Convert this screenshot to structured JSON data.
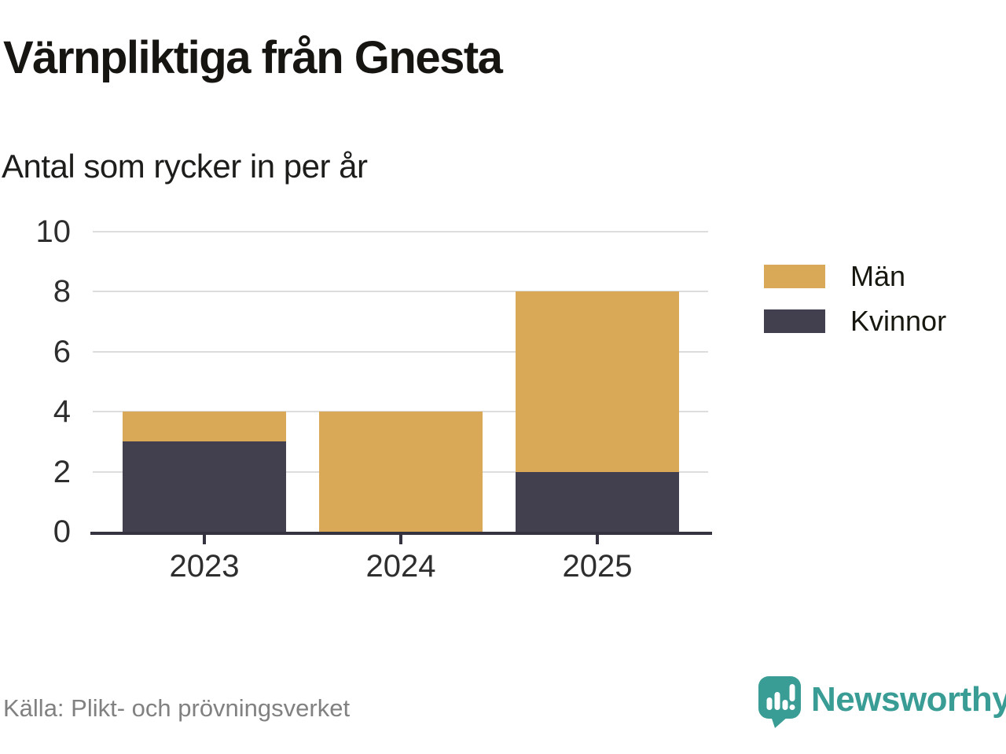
{
  "header": {
    "title": "Värnpliktiga från Gnesta",
    "subtitle": "Antal som rycker in per år"
  },
  "chart_data": {
    "type": "bar",
    "stacked": true,
    "title": "Värnpliktiga från Gnesta",
    "subtitle": "Antal som rycker in per år",
    "categories": [
      "2023",
      "2024",
      "2025"
    ],
    "series": [
      {
        "name": "Män",
        "color": "#D9A957",
        "values": [
          1,
          4,
          6
        ]
      },
      {
        "name": "Kvinnor",
        "color": "#423F4F",
        "values": [
          3,
          0,
          2
        ]
      }
    ],
    "stack_bottom_to_top": [
      "Kvinnor",
      "Män"
    ],
    "totals": [
      4,
      4,
      8
    ],
    "xlabel": "",
    "ylabel": "",
    "ylim": [
      0,
      10
    ],
    "yticks": [
      0,
      2,
      4,
      6,
      8,
      10
    ],
    "grid": "horizontal",
    "legend_position": "right",
    "axis_color": "#35333f",
    "gridline_color": "#dddddd",
    "tick_label_color": "#2e2e2e"
  },
  "footer": {
    "source": "Källa: Plikt- och prövningsverket",
    "brand": "Newsworthy",
    "brand_color": "#3a9d95",
    "logo_icon": "speech-bubble-bar-chart-icon"
  }
}
